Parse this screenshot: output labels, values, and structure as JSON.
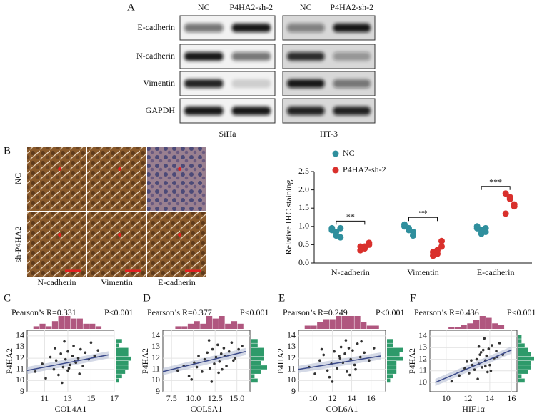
{
  "panel_labels": [
    "A",
    "B",
    "C",
    "D",
    "E",
    "F"
  ],
  "blot": {
    "columns": [
      "NC",
      "P4HA2-sh-2",
      "NC",
      "P4HA2-sh-2"
    ],
    "rows": [
      "E-cadherin",
      "N-cadherin",
      "Vimentin",
      "GAPDH"
    ],
    "cell_lines": [
      "SiHa",
      "HT-3"
    ]
  },
  "ihc": {
    "rows": [
      "NC",
      "sh-P4HA2"
    ],
    "columns": [
      "N-cadherin",
      "Vimentin",
      "E-cadherin"
    ]
  },
  "chart_data": [
    {
      "type": "dot",
      "ylabel": "Relative IHC staining",
      "categories": [
        "N-cadherin",
        "Vimentin",
        "E-cadherin"
      ],
      "series": [
        {
          "name": "NC",
          "color": "#2f8f9d",
          "values": [
            [
              0.95,
              0.85,
              0.7,
              0.9,
              0.75,
              0.95
            ],
            [
              1.0,
              0.95,
              0.85,
              1.05,
              0.9,
              0.75
            ],
            [
              0.95,
              0.9,
              0.85,
              1.0,
              0.8,
              0.95
            ]
          ]
        },
        {
          "name": "P4HA2-sh-2",
          "color": "#d9302c",
          "values": [
            [
              0.45,
              0.4,
              0.5,
              0.35,
              0.45,
              0.55
            ],
            [
              0.3,
              0.25,
              0.45,
              0.2,
              0.35,
              0.6
            ],
            [
              1.9,
              1.75,
              1.55,
              1.35,
              1.8,
              1.6
            ]
          ]
        }
      ],
      "annotations": [
        "**",
        "**",
        "***"
      ],
      "ylim": [
        0,
        2.5
      ],
      "yticks": [
        {
          "value": 0,
          "label": "0.0"
        },
        0.5,
        {
          "value": 1,
          "label": "1.0"
        },
        1.5,
        {
          "value": 2,
          "label": "2.0"
        },
        2.5
      ]
    },
    {
      "type": "scatter",
      "stat": "Pearson’s R=0.331",
      "p": "P<0.001",
      "xlabel": "COL4A1",
      "ylabel": "P4HA2",
      "color": "#333333",
      "x": [
        10.2,
        10.8,
        11.1,
        11.5,
        11.8,
        12,
        12.2,
        12.4,
        12.6,
        12.8,
        13,
        13,
        13.2,
        13.4,
        13.5,
        13.7,
        13.9,
        14.1,
        14.3,
        14.5,
        14.8,
        15,
        15.3,
        15.6,
        12.5,
        13.1,
        11.9,
        14,
        12.7,
        13.6
      ],
      "y": [
        10.8,
        11.5,
        10.2,
        12.1,
        11,
        11.8,
        10.5,
        12.4,
        11.2,
        11.9,
        12.6,
        10.9,
        11.4,
        12.2,
        13.1,
        11.6,
        12,
        12.8,
        11.3,
        12.5,
        11.9,
        13.4,
        12.2,
        12.7,
        9.8,
        11.1,
        12.9,
        10.6,
        13.5,
        11.7
      ],
      "fit": {
        "x": [
          9.5,
          16.5
        ],
        "y": [
          10.9,
          12.3
        ]
      },
      "xlim": [
        9.5,
        17
      ],
      "xticks": [
        11,
        13,
        15,
        17
      ],
      "ylim": [
        9,
        14.5
      ],
      "yticks": [
        9,
        10,
        11,
        12,
        13,
        14
      ]
    },
    {
      "type": "scatter",
      "stat": "Pearson’s R=0.377",
      "p": "P<0.001",
      "xlabel": "COL5A1",
      "ylabel": "P4HA2",
      "color": "#333333",
      "x": [
        8.2,
        8.9,
        9.5,
        10.1,
        10.6,
        11,
        11.3,
        11.6,
        11.9,
        12.2,
        12.4,
        12.6,
        12.8,
        13,
        13.2,
        13.5,
        13.8,
        14.1,
        14.4,
        14.8,
        15.2,
        15.6,
        9.8,
        12.1,
        13.3,
        11.8,
        12.9,
        14.6,
        10.4,
        13.6
      ],
      "y": [
        10.9,
        11.3,
        10.4,
        11.6,
        12.2,
        10.8,
        11.9,
        12.5,
        11.1,
        12.8,
        11.5,
        12.1,
        13.2,
        11.7,
        12.4,
        12.9,
        11.3,
        12.6,
        13.4,
        12,
        12.8,
        13.1,
        10.1,
        9.9,
        11,
        13.6,
        10.7,
        11.8,
        11.2,
        12.2
      ],
      "fit": {
        "x": [
          6.5,
          16
        ],
        "y": [
          10.8,
          12.6
        ]
      },
      "xlim": [
        6.5,
        16.5
      ],
      "xticks": [
        {
          "value": 7.5,
          "label": "7.5"
        },
        {
          "value": 10,
          "label": "10.0"
        },
        {
          "value": 12.5,
          "label": "12.5"
        },
        {
          "value": 15,
          "label": "15.0"
        }
      ],
      "ylim": [
        9,
        14.5
      ],
      "yticks": [
        9,
        10,
        11,
        12,
        13,
        14
      ]
    },
    {
      "type": "scatter",
      "stat": "Pearson’s R=0.249",
      "p": "P<0.001",
      "xlabel": "COL6A1",
      "ylabel": "P4HA2",
      "color": "#333333",
      "x": [
        9.6,
        10.2,
        10.7,
        11.1,
        11.5,
        11.9,
        12.2,
        12.5,
        12.7,
        12.9,
        13.1,
        13.3,
        13.5,
        13.7,
        13.9,
        14.1,
        14.3,
        14.6,
        14.9,
        15.3,
        15.8,
        16.3,
        12,
        13.4,
        11.7,
        14.4,
        12.8,
        13.8,
        10.9,
        15
      ],
      "y": [
        11.2,
        10.6,
        11.8,
        12.3,
        10.9,
        11.5,
        12.6,
        11.1,
        12.2,
        13,
        11.6,
        12.4,
        10.8,
        12.9,
        11.9,
        12.7,
        11.4,
        13.3,
        12.1,
        12.5,
        11.8,
        12.9,
        9.9,
        13.6,
        10.3,
        11,
        12,
        10.5,
        12.8,
        13.5
      ],
      "fit": {
        "x": [
          8.5,
          17
        ],
        "y": [
          11,
          12.2
        ]
      },
      "xlim": [
        8.5,
        17.5
      ],
      "xticks": [
        10,
        12,
        14,
        16
      ],
      "ylim": [
        9,
        14.5
      ],
      "yticks": [
        9,
        10,
        11,
        12,
        13,
        14
      ]
    },
    {
      "type": "scatter",
      "stat": "Pearson’s R=0.436",
      "p": "P<0.001",
      "xlabel": "HIF1α",
      "ylabel": "P4HA2",
      "color": "#333333",
      "x": [
        10.5,
        11.2,
        11.7,
        12.1,
        12.4,
        12.6,
        12.8,
        13,
        13.1,
        13.3,
        13.4,
        13.6,
        13.7,
        13.9,
        14,
        14.2,
        14.4,
        14.6,
        14.9,
        15.2,
        12.9,
        13.5,
        12.3,
        14.1,
        13.2,
        13.8,
        11.9,
        14.7,
        13,
        13.6
      ],
      "y": [
        10.1,
        10.6,
        11.2,
        10.8,
        11.5,
        11.1,
        12,
        11.6,
        12.4,
        11.3,
        12.8,
        11.9,
        12.3,
        12.9,
        11.5,
        13.2,
        12.1,
        12.7,
        13.4,
        12.4,
        10.3,
        13.8,
        11.9,
        11,
        12.6,
        10.9,
        11.8,
        12.2,
        13.1,
        11.4
      ],
      "fit": {
        "x": [
          9,
          16
        ],
        "y": [
          10,
          12.8
        ]
      },
      "xlim": [
        8.5,
        16.5
      ],
      "xticks": [
        10,
        12,
        14,
        16
      ],
      "ylim": [
        9.2,
        14.5
      ],
      "yticks": [
        10,
        11,
        12,
        13,
        14
      ]
    }
  ]
}
